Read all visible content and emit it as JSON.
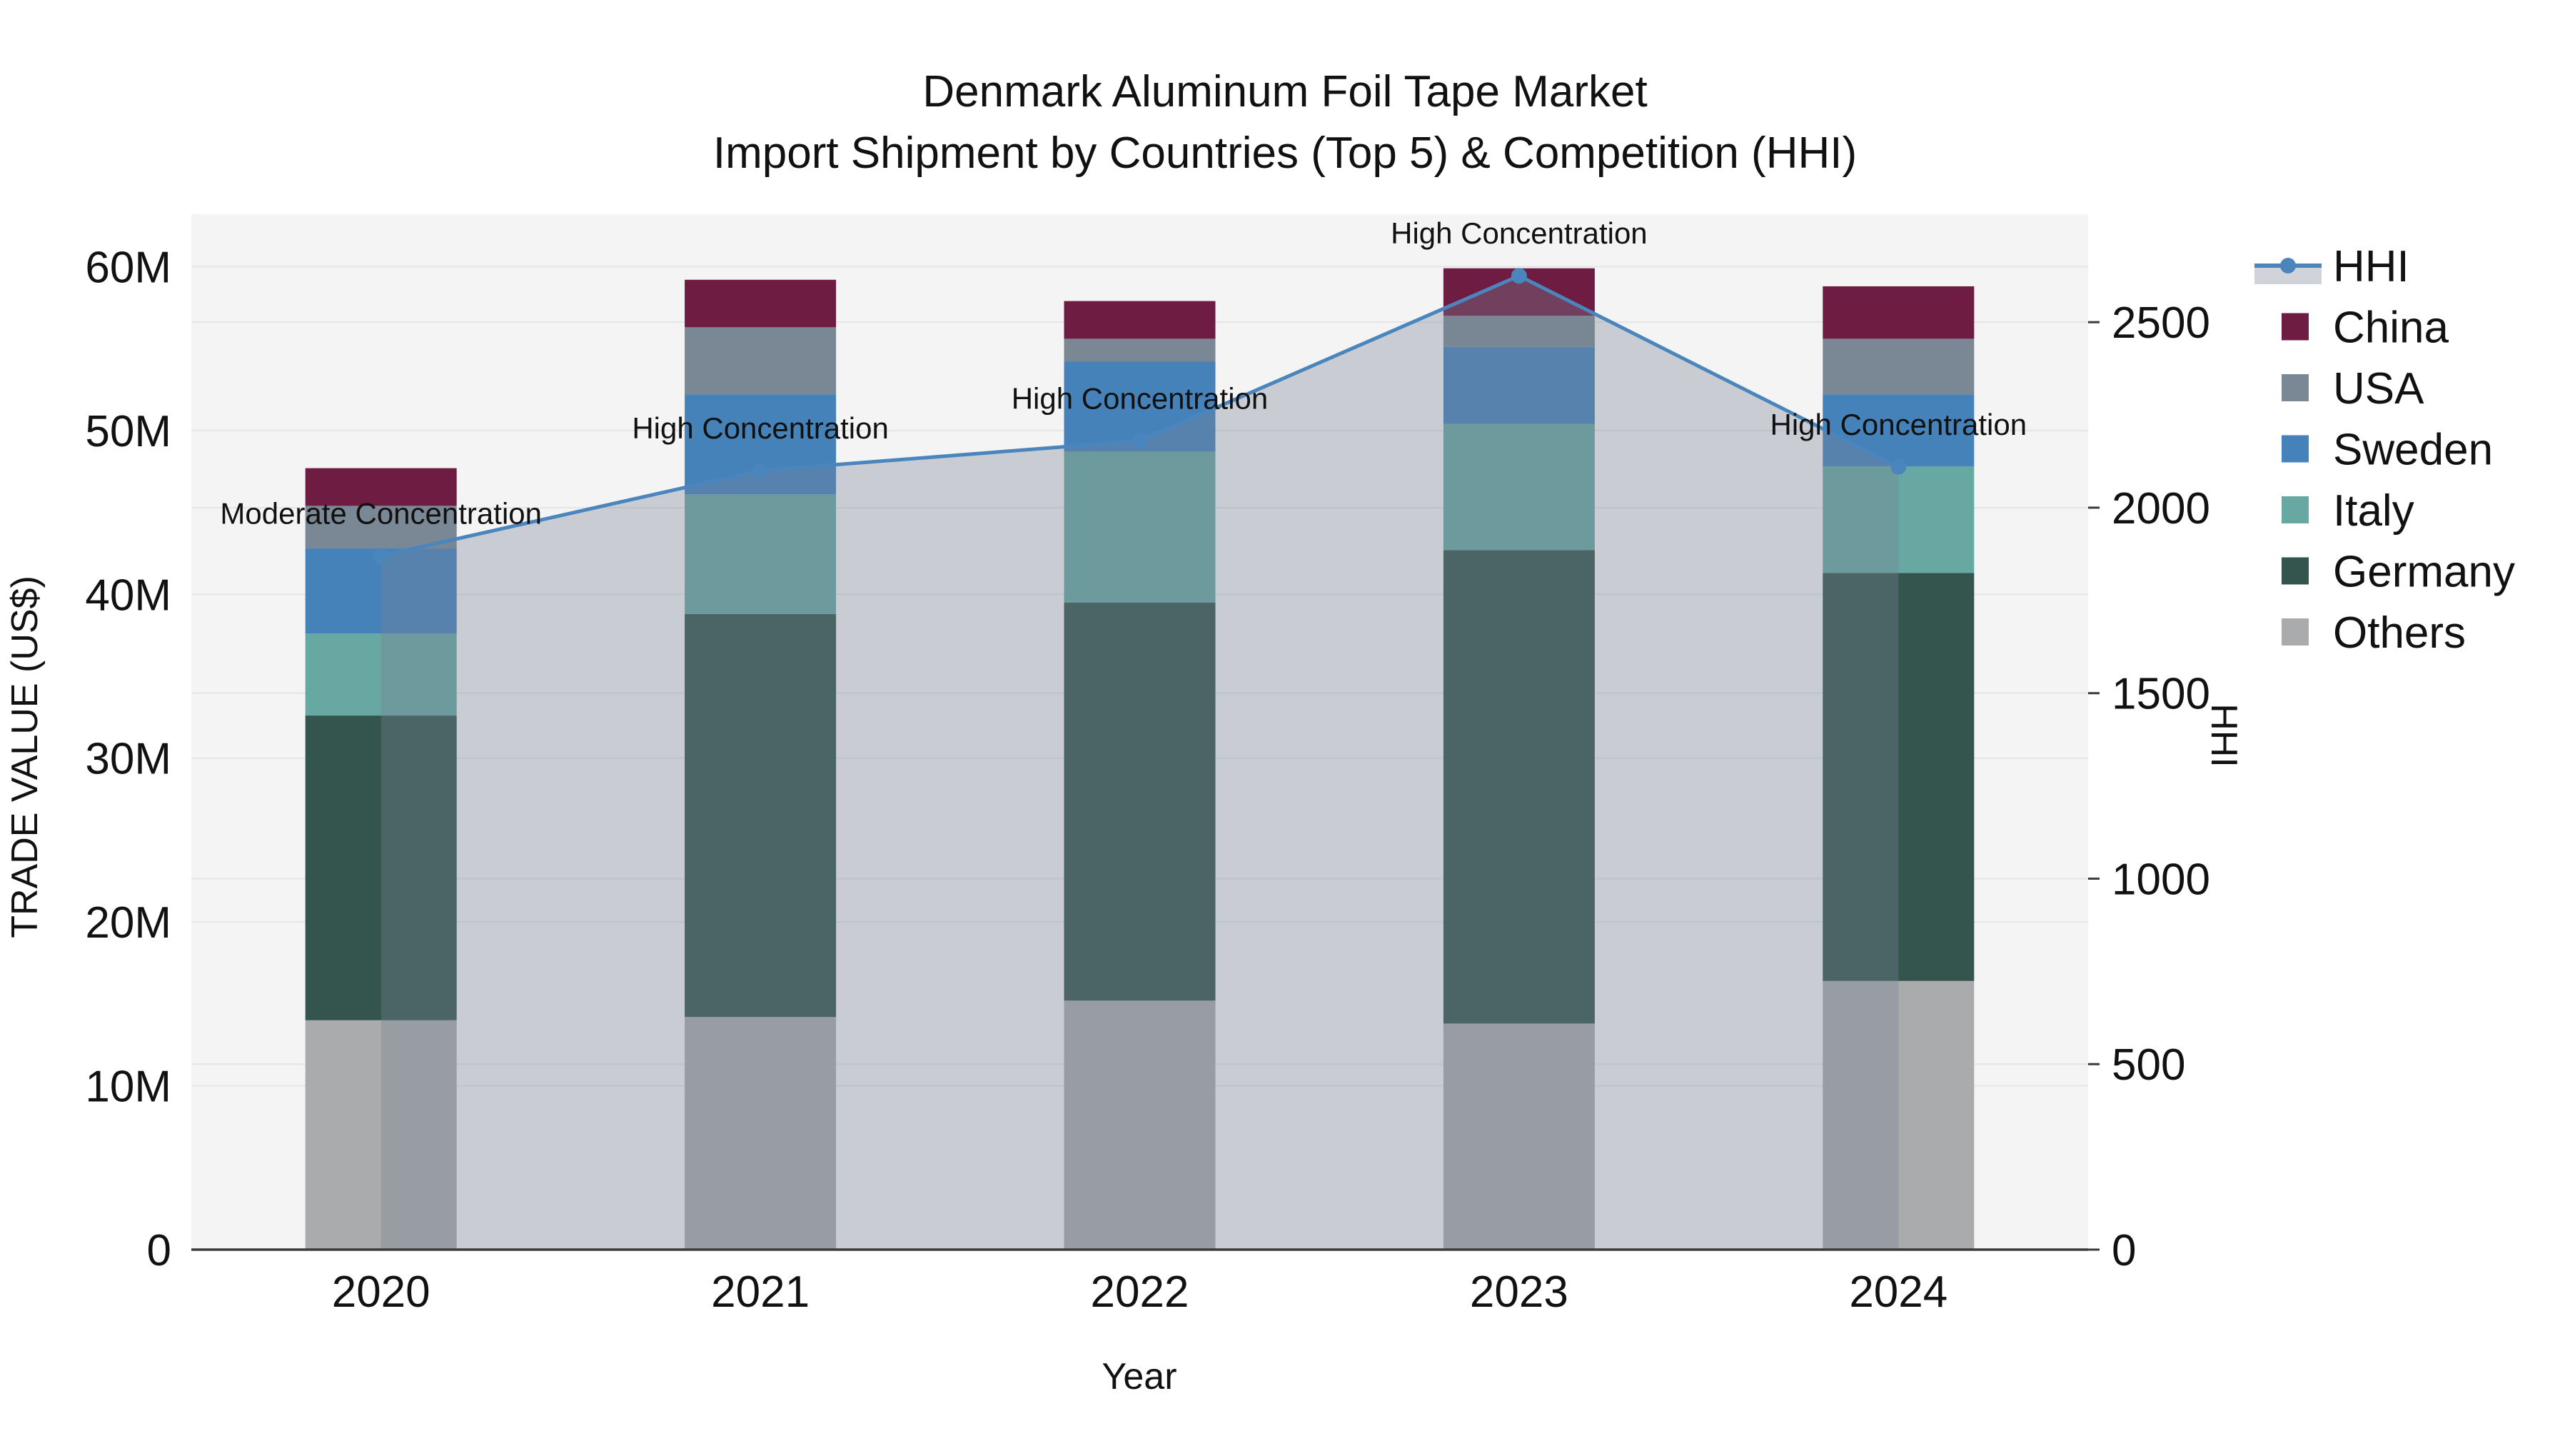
{
  "title": {
    "line1": "Denmark Aluminum Foil Tape Market",
    "line2": "Import Shipment by Countries (Top 5) & Competition (HHI)"
  },
  "axes": {
    "x_title": "Year",
    "y_left_title": "TRADE VALUE (US$)",
    "y_right_title": "HHI",
    "y_left_tick_labels": [
      "0",
      "10M",
      "20M",
      "30M",
      "40M",
      "50M",
      "60M"
    ],
    "y_left_tick_values": [
      0,
      10,
      20,
      30,
      40,
      50,
      60
    ],
    "y_right_tick_labels": [
      "0",
      "500",
      "1000",
      "1500",
      "2000",
      "2500"
    ],
    "y_right_tick_values": [
      0,
      500,
      1000,
      1500,
      2000,
      2500
    ]
  },
  "legend": {
    "items": [
      {
        "label": "HHI",
        "type": "line",
        "color": "#4A86BD"
      },
      {
        "label": "China",
        "type": "swatch",
        "color": "#6E1C42"
      },
      {
        "label": "USA",
        "type": "swatch",
        "color": "#7A8794"
      },
      {
        "label": "Sweden",
        "type": "swatch",
        "color": "#4682BA"
      },
      {
        "label": "Italy",
        "type": "swatch",
        "color": "#68A8A2"
      },
      {
        "label": "Germany",
        "type": "swatch",
        "color": "#34544E"
      },
      {
        "label": "Others",
        "type": "swatch",
        "color": "#A9ABAC"
      }
    ]
  },
  "chart_data": {
    "type": "bar",
    "subtype": "stacked-bars-with-line-overlay",
    "title": "Denmark Aluminum Foil Tape Market — Import Shipment by Countries (Top 5) & Competition (HHI)",
    "xlabel": "Year",
    "ylabel_left": "TRADE VALUE (US$)",
    "ylabel_right": "HHI",
    "categories": [
      "2020",
      "2021",
      "2022",
      "2023",
      "2024"
    ],
    "ylim_left_millions": [
      0,
      63.2
    ],
    "ylim_right_hhi": [
      0,
      2791
    ],
    "grid": true,
    "legend_position": "right",
    "series": [
      {
        "name": "Others",
        "unit": "M US$",
        "color": "#A9ABAC",
        "values": [
          14.0,
          14.2,
          15.2,
          13.8,
          16.4
        ]
      },
      {
        "name": "Germany",
        "unit": "M US$",
        "color": "#34544E",
        "values": [
          18.6,
          24.6,
          24.3,
          28.9,
          24.9
        ]
      },
      {
        "name": "Italy",
        "unit": "M US$",
        "color": "#68A8A2",
        "values": [
          5.0,
          7.3,
          9.2,
          7.7,
          6.5
        ]
      },
      {
        "name": "Sweden",
        "unit": "M US$",
        "color": "#4682BA",
        "values": [
          5.2,
          6.1,
          5.5,
          4.7,
          4.4
        ]
      },
      {
        "name": "USA",
        "unit": "M US$",
        "color": "#7A8794",
        "values": [
          2.6,
          4.1,
          1.4,
          1.9,
          3.4
        ]
      },
      {
        "name": "China",
        "unit": "M US$",
        "color": "#6E1C42",
        "values": [
          2.3,
          2.9,
          2.3,
          2.9,
          3.2
        ]
      }
    ],
    "bar_totals_millions": [
      47.7,
      59.2,
      57.9,
      59.9,
      58.8
    ],
    "line_series": {
      "name": "HHI",
      "color": "#4A86BD",
      "area_fill": "rgba(120,133,150,0.35)",
      "values": [
        1870,
        2100,
        2180,
        2625,
        2110
      ]
    },
    "annotations": [
      {
        "category": "2020",
        "text": "Moderate Concentration"
      },
      {
        "category": "2021",
        "text": "High Concentration"
      },
      {
        "category": "2022",
        "text": "High Concentration"
      },
      {
        "category": "2023",
        "text": "High Concentration"
      },
      {
        "category": "2024",
        "text": "High Concentration"
      }
    ]
  },
  "colors": {
    "plot_bg": "#f4f4f5",
    "grid": "#e3e5e7",
    "axis_line": "#3b3b3b",
    "text": "#111111"
  }
}
